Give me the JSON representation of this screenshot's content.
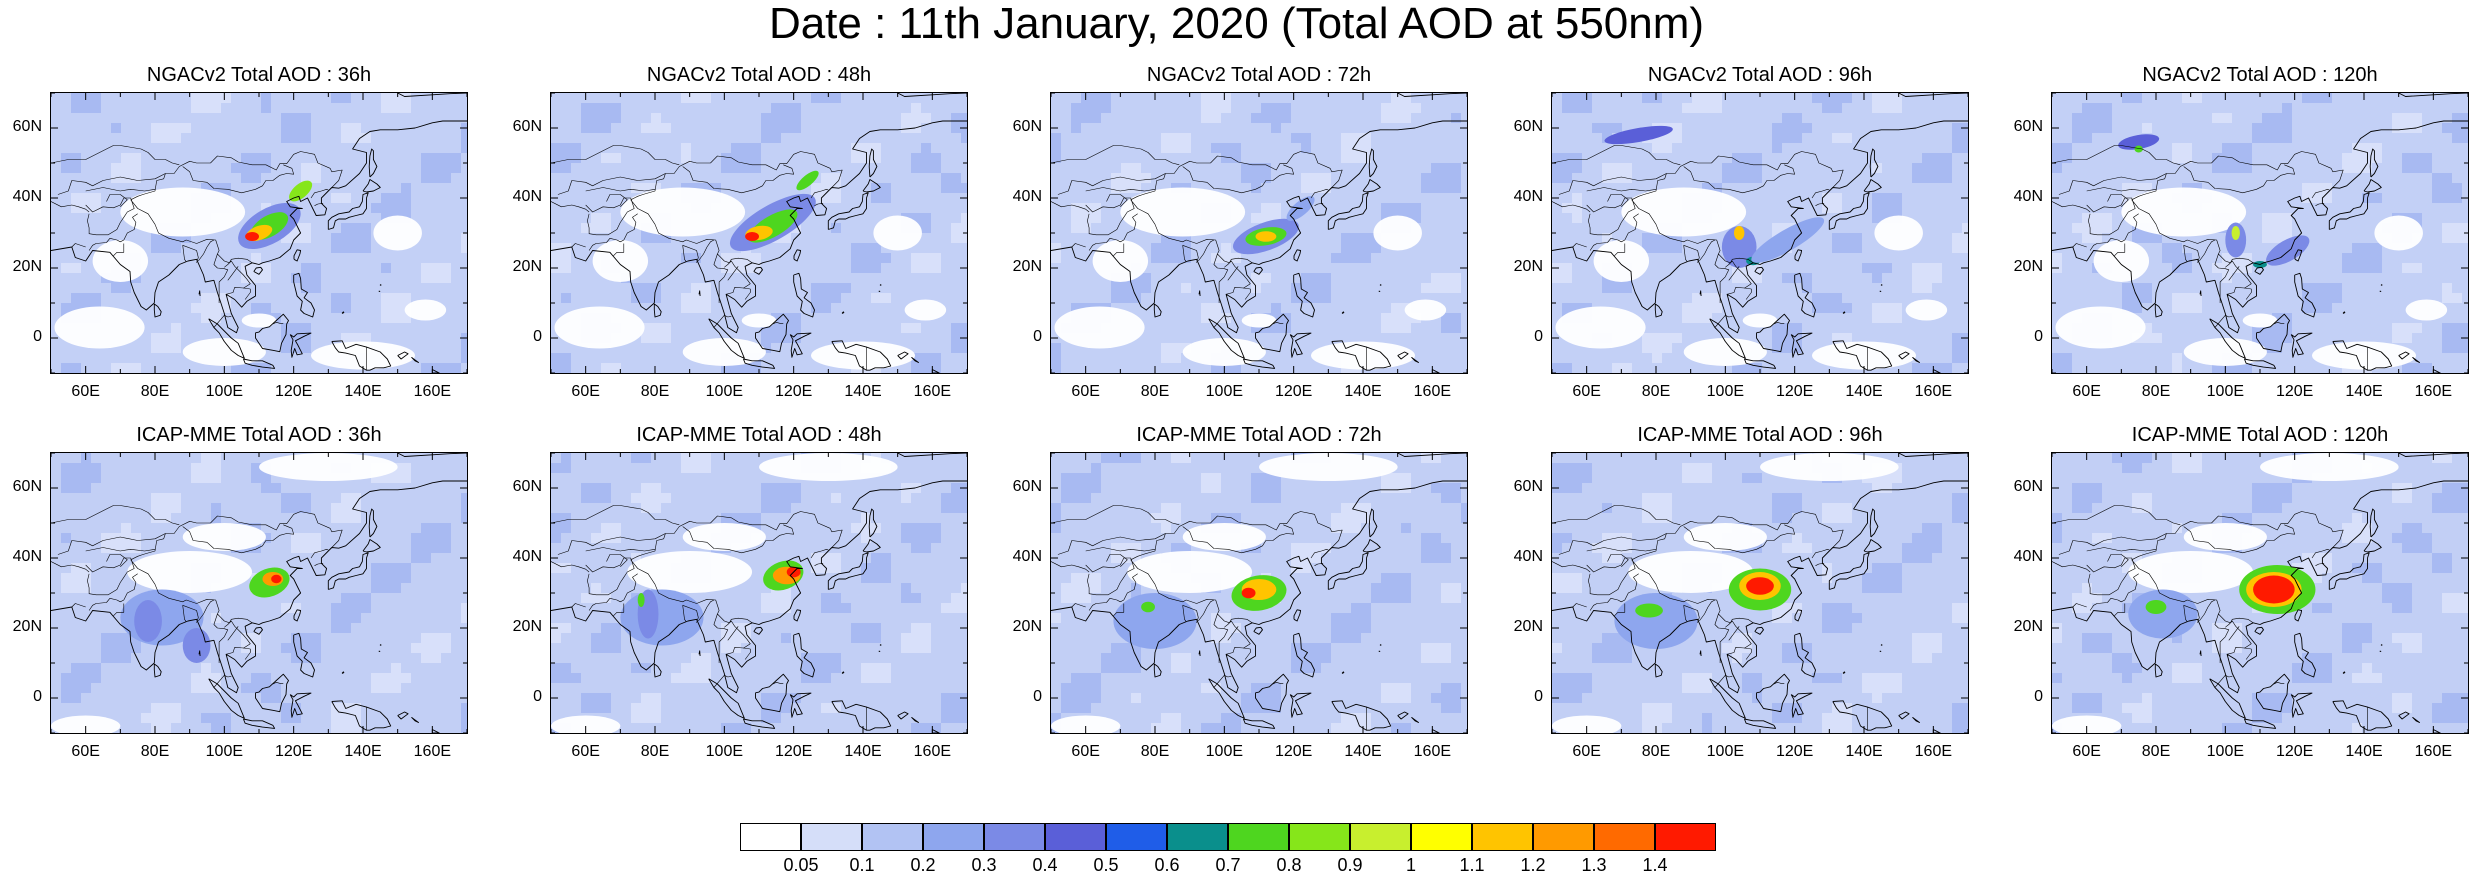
{
  "figure": {
    "title": "Date : 11th January, 2020 (Total AOD at 550nm)"
  },
  "panels": [
    {
      "title": "NGACv2 Total AOD : 36h",
      "model": "NGACv2",
      "lead": "36h"
    },
    {
      "title": "NGACv2 Total AOD : 48h",
      "model": "NGACv2",
      "lead": "48h"
    },
    {
      "title": "NGACv2 Total AOD : 72h",
      "model": "NGACv2",
      "lead": "72h"
    },
    {
      "title": "NGACv2 Total AOD : 96h",
      "model": "NGACv2",
      "lead": "96h"
    },
    {
      "title": "NGACv2 Total AOD : 120h",
      "model": "NGACv2",
      "lead": "120h"
    },
    {
      "title": "ICAP-MME Total AOD : 36h",
      "model": "ICAP-MME",
      "lead": "36h"
    },
    {
      "title": "ICAP-MME Total AOD : 48h",
      "model": "ICAP-MME",
      "lead": "48h"
    },
    {
      "title": "ICAP-MME Total AOD : 72h",
      "model": "ICAP-MME",
      "lead": "72h"
    },
    {
      "title": "ICAP-MME Total AOD : 96h",
      "model": "ICAP-MME",
      "lead": "96h"
    },
    {
      "title": "ICAP-MME Total AOD : 120h",
      "model": "ICAP-MME",
      "lead": "120h"
    }
  ],
  "axes": {
    "lat_ticks": [
      "60N",
      "40N",
      "20N",
      "0"
    ],
    "lon_ticks": [
      "60E",
      "80E",
      "100E",
      "120E",
      "140E",
      "160E"
    ],
    "lon_range": [
      50,
      170
    ],
    "lat_range": [
      -10,
      70
    ]
  },
  "colorbar": {
    "labels": [
      "0.05",
      "0.1",
      "0.2",
      "0.3",
      "0.4",
      "0.5",
      "0.6",
      "0.7",
      "0.8",
      "0.9",
      "1",
      "1.1",
      "1.2",
      "1.3",
      "1.4"
    ],
    "colors": [
      "#ffffff",
      "#d5def9",
      "#b2c3f3",
      "#8ea6ee",
      "#7b8ae6",
      "#5a5fd8",
      "#1f5de8",
      "#0a8f8c",
      "#4ed61f",
      "#86e61a",
      "#c8ef2e",
      "#ffff00",
      "#ffc400",
      "#ff9a00",
      "#ff6a00",
      "#ff1a00"
    ]
  }
}
